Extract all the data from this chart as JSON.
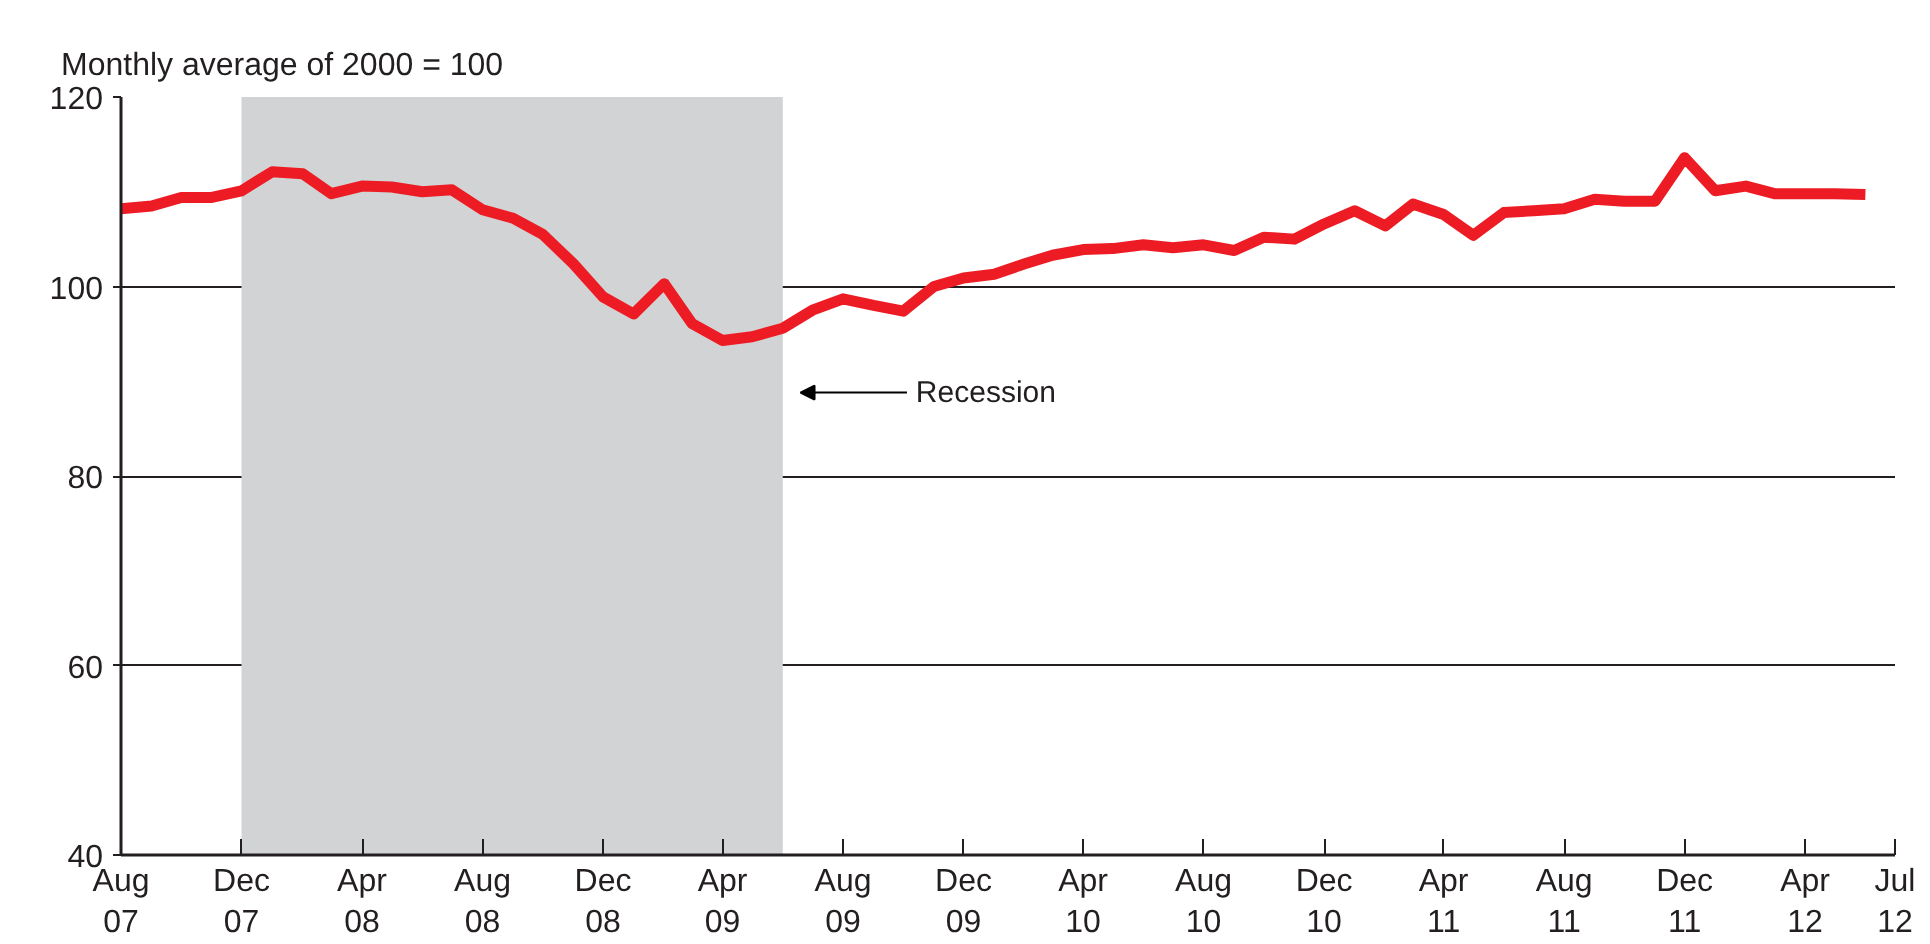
{
  "chart_data": {
    "type": "line",
    "ylabel": "Monthly average of 2000 = 100",
    "x": [
      "2007-08",
      "2007-09",
      "2007-10",
      "2007-11",
      "2007-12",
      "2008-01",
      "2008-02",
      "2008-03",
      "2008-04",
      "2008-05",
      "2008-06",
      "2008-07",
      "2008-08",
      "2008-09",
      "2008-10",
      "2008-11",
      "2008-12",
      "2009-01",
      "2009-02",
      "2009-03",
      "2009-04",
      "2009-05",
      "2009-06",
      "2009-07",
      "2009-08",
      "2009-09",
      "2009-10",
      "2009-11",
      "2009-12",
      "2010-01",
      "2010-02",
      "2010-03",
      "2010-04",
      "2010-05",
      "2010-06",
      "2010-07",
      "2010-08",
      "2010-09",
      "2010-10",
      "2010-11",
      "2010-12",
      "2011-01",
      "2011-02",
      "2011-03",
      "2011-04",
      "2011-05",
      "2011-06",
      "2011-07",
      "2011-08",
      "2011-09",
      "2011-10",
      "2011-11",
      "2011-12",
      "2012-01",
      "2012-02",
      "2012-03",
      "2012-04",
      "2012-05",
      "2012-06"
    ],
    "series": [
      {
        "color": "#ed1c24",
        "values": [
          108.2,
          108.5,
          109.4,
          109.4,
          110.1,
          112.1,
          111.9,
          109.8,
          110.6,
          110.5,
          110.0,
          110.2,
          108.1,
          107.2,
          105.5,
          102.4,
          98.9,
          97.1,
          100.3,
          96.1,
          94.3,
          94.7,
          95.6,
          97.5,
          98.7,
          98.0,
          97.4,
          100.0,
          100.9,
          101.3,
          102.4,
          103.3,
          103.9,
          104.0,
          104.4,
          104.1,
          104.4,
          103.8,
          105.2,
          105.0,
          106.6,
          108.0,
          106.4,
          108.7,
          107.6,
          105.4,
          107.8,
          108.0,
          108.2,
          109.2,
          109.0,
          109.0,
          113.6,
          110.1,
          110.6,
          109.8,
          109.8,
          109.8,
          109.7
        ]
      }
    ],
    "xlim": [
      "2007-08",
      "2012-07"
    ],
    "xticks": [
      {
        "value": "2007-08",
        "label": "Aug 07"
      },
      {
        "value": "2007-12",
        "label": "Dec 07"
      },
      {
        "value": "2008-04",
        "label": "Apr 08"
      },
      {
        "value": "2008-08",
        "label": "Aug 08"
      },
      {
        "value": "2008-12",
        "label": "Dec 08"
      },
      {
        "value": "2009-04",
        "label": "Apr 09"
      },
      {
        "value": "2009-08",
        "label": "Aug 09"
      },
      {
        "value": "2009-12",
        "label": "Dec 09"
      },
      {
        "value": "2010-04",
        "label": "Apr 10"
      },
      {
        "value": "2010-08",
        "label": "Aug 10"
      },
      {
        "value": "2010-12",
        "label": "Dec 10"
      },
      {
        "value": "2011-04",
        "label": "Apr 11"
      },
      {
        "value": "2011-08",
        "label": "Aug 11"
      },
      {
        "value": "2011-12",
        "label": "Dec 11"
      },
      {
        "value": "2012-04",
        "label": "Apr 12"
      },
      {
        "value": "2012-07",
        "label": "Jul 12"
      }
    ],
    "ylim": [
      40,
      120
    ],
    "yticks": [
      40,
      60,
      80,
      100,
      120
    ],
    "grid": "y",
    "line_style": "solid",
    "bands": [
      {
        "axis": "x",
        "from": "2007-12",
        "to": "2009-06",
        "label": "Recession",
        "color": "#d1d3d4"
      }
    ]
  }
}
